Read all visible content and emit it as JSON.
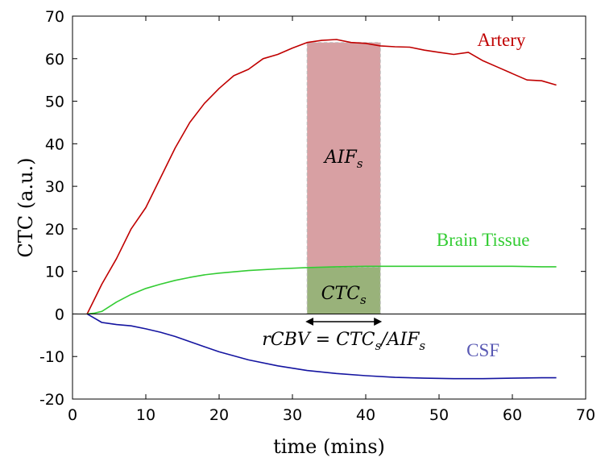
{
  "chart_data": {
    "type": "line",
    "title": "",
    "xlabel": "time (mins)",
    "ylabel": "CTC (a.u.)",
    "xlim": [
      0,
      70
    ],
    "ylim": [
      -20,
      70
    ],
    "xticks": [
      0,
      10,
      20,
      30,
      40,
      50,
      60,
      70
    ],
    "yticks": [
      -20,
      -10,
      0,
      10,
      20,
      30,
      40,
      50,
      60,
      70
    ],
    "grid": false,
    "series": [
      {
        "name": "Artery",
        "color": "#c00000",
        "x": [
          2,
          3,
          4,
          6,
          8,
          10,
          12,
          14,
          16,
          18,
          20,
          22,
          24,
          26,
          28,
          30,
          32,
          34,
          36,
          38,
          40,
          42,
          44,
          46,
          48,
          50,
          52,
          54,
          56,
          58,
          60,
          62,
          64,
          66
        ],
        "y": [
          0,
          3.5,
          7,
          13,
          20,
          25,
          32,
          39,
          45,
          49.5,
          53,
          56,
          57.5,
          60,
          61,
          62.5,
          63.8,
          64.3,
          64.5,
          63.8,
          63.6,
          63,
          62.8,
          62.7,
          62,
          61.5,
          61,
          61.5,
          59.5,
          58,
          56.5,
          55,
          54.8,
          53.8
        ]
      },
      {
        "name": "Brain Tissue",
        "color": "#33cc33",
        "x": [
          2,
          3,
          4,
          6,
          8,
          10,
          12,
          14,
          16,
          18,
          20,
          24,
          28,
          32,
          36,
          40,
          44,
          48,
          52,
          56,
          60,
          64,
          66
        ],
        "y": [
          0,
          0.2,
          0.6,
          2.8,
          4.6,
          6,
          7,
          7.9,
          8.6,
          9.2,
          9.6,
          10.2,
          10.6,
          10.9,
          11.1,
          11.2,
          11.2,
          11.2,
          11.2,
          11.2,
          11.2,
          11.1,
          11.1
        ]
      },
      {
        "name": "CSF",
        "color": "#1414a0",
        "x": [
          2,
          3,
          4,
          6,
          8,
          10,
          12,
          14,
          16,
          18,
          20,
          24,
          28,
          32,
          36,
          40,
          44,
          48,
          52,
          56,
          60,
          64,
          66
        ],
        "y": [
          0,
          -1,
          -2,
          -2.5,
          -2.8,
          -3.5,
          -4.3,
          -5.3,
          -6.5,
          -7.7,
          -8.9,
          -10.8,
          -12.2,
          -13.3,
          -14,
          -14.5,
          -14.9,
          -15.1,
          -15.2,
          -15.2,
          -15.1,
          -15,
          -15
        ]
      }
    ],
    "series_labels": [
      {
        "text": "Artery",
        "color": "#c00000",
        "x": 58.5,
        "y": 63
      },
      {
        "text": "Brain Tissue",
        "color": "#33cc33",
        "x": 56,
        "y": 16
      },
      {
        "text": "CSF",
        "color": "#5a5ab4",
        "x": 56,
        "y": -10
      }
    ],
    "regions": [
      {
        "name": "AIF_s",
        "x_from": 32,
        "x_to": 42,
        "y_from": 11,
        "y_to": 63.8,
        "color": "#d8a0a3",
        "label_base": "AIF",
        "label_sub": "s",
        "label_x": 37,
        "label_y": 37
      },
      {
        "name": "CTC_s",
        "x_from": 32,
        "x_to": 42,
        "y_from": 0,
        "y_to": 11,
        "color": "#99b27a",
        "label_base": "CTC",
        "label_sub": "s",
        "label_x": 37,
        "label_y": 5
      }
    ],
    "annotation": {
      "arrow_from": 32,
      "arrow_to": 42,
      "arrow_y": -1.8,
      "formula": "rCBV = CTCs/AIFs",
      "formula_x": 37,
      "formula_y": -7.3
    }
  }
}
